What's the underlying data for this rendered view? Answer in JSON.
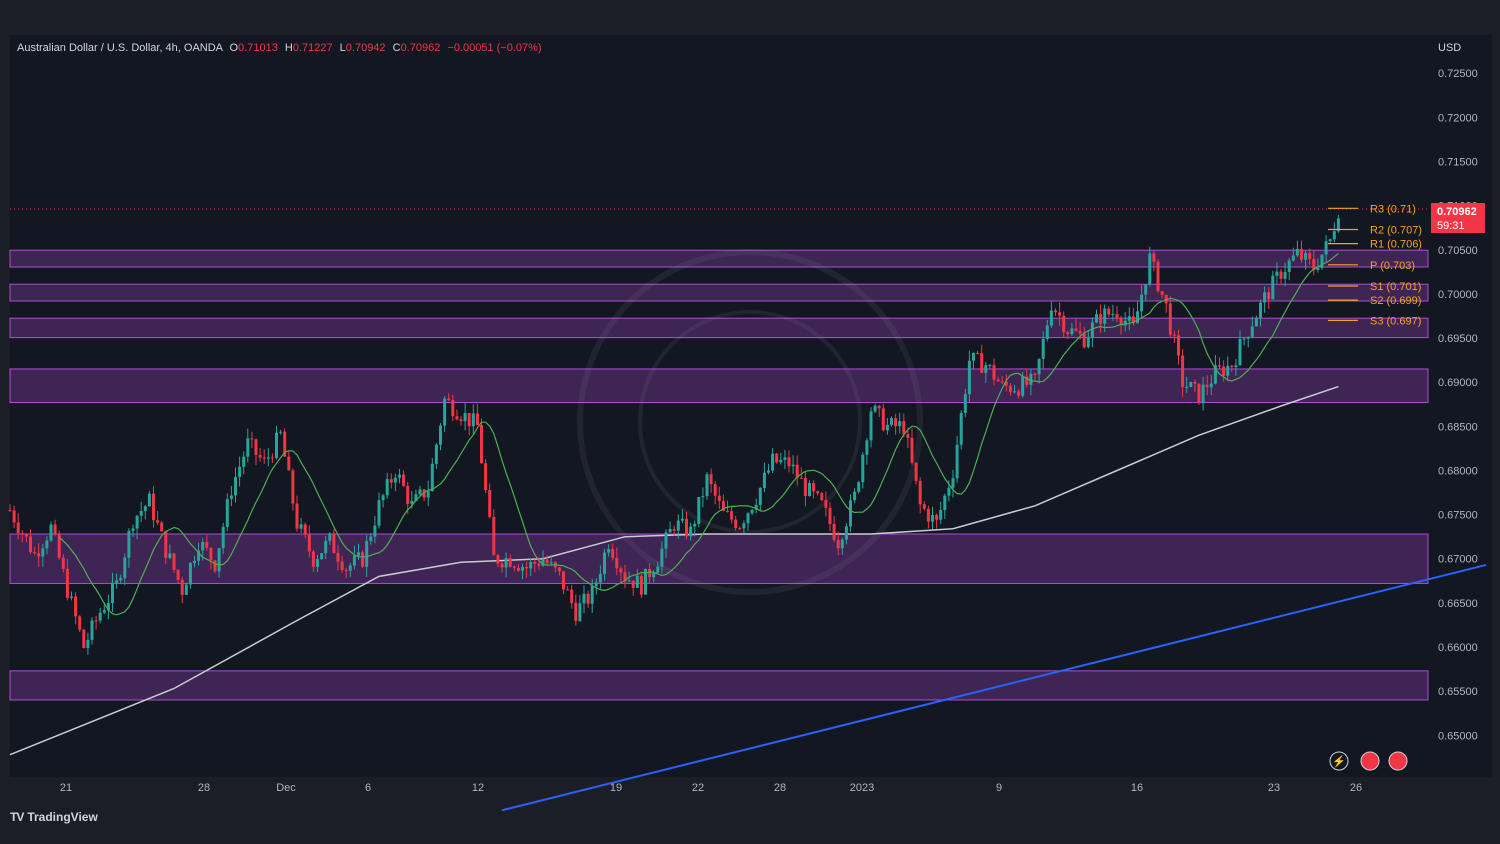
{
  "header": {
    "symbol": "Australian Dollar / U.S. Dollar, 4h, OANDA",
    "open_label": "O",
    "open": "0.71013",
    "high_label": "H",
    "high": "0.71227",
    "low_label": "L",
    "low": "0.70942",
    "close_label": "C",
    "close": "0.70962",
    "change": "−0.00051 (−0.07%)"
  },
  "currency": "USD",
  "current_price": {
    "value": "0.70962",
    "countdown": "59:31"
  },
  "brand": {
    "logo": "TV",
    "name": "TradingView"
  },
  "colors": {
    "background": "#1b1e25",
    "up": "#26a69a",
    "down": "#f23645",
    "zone": "#b04dd6",
    "ma_fast": "#4caf50",
    "ma_slow": "#c8ccd0",
    "trendline": "#2962ff",
    "pivot": "#f7a21b"
  },
  "chart_data": {
    "type": "candlestick",
    "timeframe": "4h",
    "ylim": [
      0.6455,
      0.7265
    ],
    "y_ticks": [
      "0.72500",
      "0.72000",
      "0.71500",
      "0.71000",
      "0.70500",
      "0.70000",
      "0.69500",
      "0.69000",
      "0.68500",
      "0.68000",
      "0.67500",
      "0.67000",
      "0.66500",
      "0.66000",
      "0.65500",
      "0.65000"
    ],
    "x_ticks": [
      "21",
      "28",
      "Dec",
      "6",
      "12",
      "19",
      "22",
      "28",
      "2023",
      "9",
      "16",
      "23",
      "26"
    ],
    "price_path": [
      [
        0,
        0.6755
      ],
      [
        6,
        0.6705
      ],
      [
        10,
        0.6735
      ],
      [
        14,
        0.6665
      ],
      [
        18,
        0.66
      ],
      [
        22,
        0.664
      ],
      [
        26,
        0.667
      ],
      [
        30,
        0.6745
      ],
      [
        34,
        0.6765
      ],
      [
        38,
        0.671
      ],
      [
        42,
        0.6665
      ],
      [
        46,
        0.672
      ],
      [
        50,
        0.6695
      ],
      [
        54,
        0.678
      ],
      [
        58,
        0.683
      ],
      [
        62,
        0.6808
      ],
      [
        66,
        0.684
      ],
      [
        70,
        0.674
      ],
      [
        74,
        0.67
      ],
      [
        78,
        0.672
      ],
      [
        82,
        0.669
      ],
      [
        86,
        0.67
      ],
      [
        90,
        0.676
      ],
      [
        94,
        0.68
      ],
      [
        98,
        0.676
      ],
      [
        102,
        0.678
      ],
      [
        106,
        0.688
      ],
      [
        110,
        0.6865
      ],
      [
        114,
        0.685
      ],
      [
        118,
        0.67
      ],
      [
        122,
        0.67
      ],
      [
        126,
        0.669
      ],
      [
        130,
        0.67
      ],
      [
        134,
        0.668
      ],
      [
        138,
        0.664
      ],
      [
        142,
        0.666
      ],
      [
        146,
        0.672
      ],
      [
        150,
        0.668
      ],
      [
        154,
        0.667
      ],
      [
        158,
        0.67
      ],
      [
        162,
        0.674
      ],
      [
        166,
        0.673
      ],
      [
        170,
        0.679
      ],
      [
        174,
        0.675
      ],
      [
        178,
        0.674
      ],
      [
        182,
        0.677
      ],
      [
        186,
        0.681
      ],
      [
        190,
        0.6808
      ],
      [
        194,
        0.678
      ],
      [
        198,
        0.676
      ],
      [
        202,
        0.672
      ],
      [
        206,
        0.677
      ],
      [
        210,
        0.687
      ],
      [
        214,
        0.685
      ],
      [
        218,
        0.685
      ],
      [
        222,
        0.676
      ],
      [
        226,
        0.674
      ],
      [
        230,
        0.68
      ],
      [
        234,
        0.6925
      ],
      [
        238,
        0.692
      ],
      [
        242,
        0.6895
      ],
      [
        246,
        0.6895
      ],
      [
        250,
        0.69
      ],
      [
        254,
        0.699
      ],
      [
        258,
        0.696
      ],
      [
        262,
        0.695
      ],
      [
        266,
        0.6975
      ],
      [
        270,
        0.698
      ],
      [
        274,
        0.696
      ],
      [
        278,
        0.704
      ],
      [
        282,
        0.6985
      ],
      [
        286,
        0.69
      ],
      [
        290,
        0.6885
      ],
      [
        294,
        0.691
      ],
      [
        298,
        0.692
      ],
      [
        302,
        0.696
      ],
      [
        306,
        0.6995
      ],
      [
        310,
        0.7025
      ],
      [
        314,
        0.7045
      ],
      [
        318,
        0.703
      ],
      [
        322,
        0.706
      ],
      [
        324,
        0.7096
      ]
    ],
    "last_index": 324,
    "resistance_zones": [
      {
        "low": 0.70305,
        "high": 0.70495
      },
      {
        "low": 0.6992,
        "high": 0.7011
      },
      {
        "low": 0.69505,
        "high": 0.69725
      },
      {
        "low": 0.6877,
        "high": 0.6915
      },
      {
        "low": 0.6672,
        "high": 0.6728
      },
      {
        "low": 0.654,
        "high": 0.6573
      }
    ],
    "pivot_levels": [
      {
        "label": "R3 (0.71)",
        "value": 0.7097
      },
      {
        "label": "R2 (0.707)",
        "value": 0.7073
      },
      {
        "label": "R1 (0.706)",
        "value": 0.7057
      },
      {
        "label": "P (0.703)",
        "value": 0.7033
      },
      {
        "label": "S1 (0.701)",
        "value": 0.7009
      },
      {
        "label": "S2 (0.699)",
        "value": 0.6993
      },
      {
        "label": "S3 (0.697)",
        "value": 0.697
      }
    ],
    "moving_average_slow": [
      [
        0,
        0.6478
      ],
      [
        40,
        0.6553
      ],
      [
        70,
        0.663
      ],
      [
        90,
        0.668
      ],
      [
        110,
        0.6696
      ],
      [
        130,
        0.67
      ],
      [
        150,
        0.6725
      ],
      [
        170,
        0.6728
      ],
      [
        190,
        0.6728
      ],
      [
        210,
        0.6728
      ],
      [
        230,
        0.6734
      ],
      [
        250,
        0.676
      ],
      [
        270,
        0.68
      ],
      [
        290,
        0.684
      ],
      [
        310,
        0.6873
      ],
      [
        324,
        0.6895
      ]
    ],
    "trendline": [
      [
        120,
        0.6415
      ],
      [
        360,
        0.6693
      ]
    ]
  }
}
